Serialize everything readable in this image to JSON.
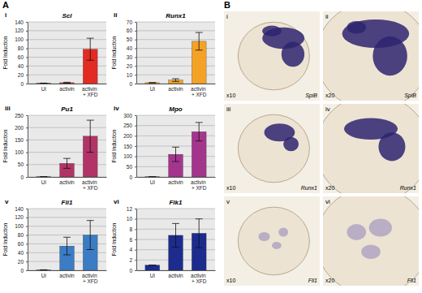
{
  "panel_labels": [
    "A",
    "B"
  ],
  "chart_data": [
    {
      "type": "bar",
      "panel_label": "i",
      "title": "Scl",
      "y_label": "Fold Induction",
      "categories": [
        "Ui",
        "activin",
        "activin + XFD"
      ],
      "values": [
        1,
        2,
        78
      ],
      "errors": [
        0,
        1,
        25
      ],
      "color": "#e32b22",
      "ylim": [
        0,
        140
      ],
      "yticks": [
        0,
        20,
        40,
        60,
        80,
        100,
        120,
        140
      ],
      "grid": true
    },
    {
      "type": "bar",
      "panel_label": "ii",
      "title": "Runx1",
      "y_label": "Fold Induction",
      "categories": [
        "Ui",
        "activin",
        "activin + XFD"
      ],
      "values": [
        1,
        4,
        48
      ],
      "errors": [
        0,
        1.5,
        10
      ],
      "color": "#f4a226",
      "ylim": [
        0,
        70
      ],
      "yticks": [
        0,
        10,
        20,
        30,
        40,
        50,
        60,
        70
      ],
      "grid": true
    },
    {
      "type": "bar",
      "panel_label": "iii",
      "title": "Pu1",
      "y_label": "Fold Induction",
      "categories": [
        "Ui",
        "activin",
        "activin + XFD"
      ],
      "values": [
        1,
        55,
        165
      ],
      "errors": [
        0,
        20,
        65
      ],
      "color": "#b23467",
      "ylim": [
        0,
        250
      ],
      "yticks": [
        0,
        50,
        100,
        150,
        200,
        250
      ],
      "grid": true
    },
    {
      "type": "bar",
      "panel_label": "iv",
      "title": "Mpo",
      "y_label": "Fold Induction",
      "categories": [
        "Ui",
        "activin",
        "activin + XFD"
      ],
      "values": [
        1,
        110,
        220
      ],
      "errors": [
        0,
        35,
        45
      ],
      "color": "#a4358d",
      "ylim": [
        0,
        300
      ],
      "yticks": [
        0,
        50,
        100,
        150,
        200,
        250,
        300
      ],
      "grid": true
    },
    {
      "type": "bar",
      "panel_label": "v",
      "title": "Fli1",
      "y_label": "Fold Induction",
      "categories": [
        "Ui",
        "activin",
        "activin + XFD"
      ],
      "values": [
        1,
        55,
        80
      ],
      "errors": [
        0,
        20,
        33
      ],
      "color": "#3b7cc4",
      "ylim": [
        0,
        140
      ],
      "yticks": [
        0,
        20,
        40,
        60,
        80,
        100,
        120,
        140
      ],
      "grid": true
    },
    {
      "type": "bar",
      "panel_label": "vi",
      "title": "Flk1",
      "y_label": "Fold Induction",
      "categories": [
        "Ui",
        "activin",
        "activin + XFD"
      ],
      "values": [
        1,
        6.8,
        7.2
      ],
      "errors": [
        0,
        2.3,
        2.8
      ],
      "color": "#1c2b8e",
      "ylim": [
        0,
        12
      ],
      "yticks": [
        0,
        2,
        4,
        6,
        8,
        10,
        12
      ],
      "grid": true
    }
  ],
  "micrographs": [
    {
      "panel_label": "i",
      "magnification": "x10",
      "gene": "SpiB"
    },
    {
      "panel_label": "ii",
      "magnification": "x20",
      "gene": "SpiB"
    },
    {
      "panel_label": "iii",
      "magnification": "x10",
      "gene": "Runx1"
    },
    {
      "panel_label": "iv",
      "magnification": "x20",
      "gene": "Runx1"
    },
    {
      "panel_label": "v",
      "magnification": "x10",
      "gene": "Fli1"
    },
    {
      "panel_label": "vi",
      "magnification": "x20",
      "gene": "Fli1"
    }
  ]
}
